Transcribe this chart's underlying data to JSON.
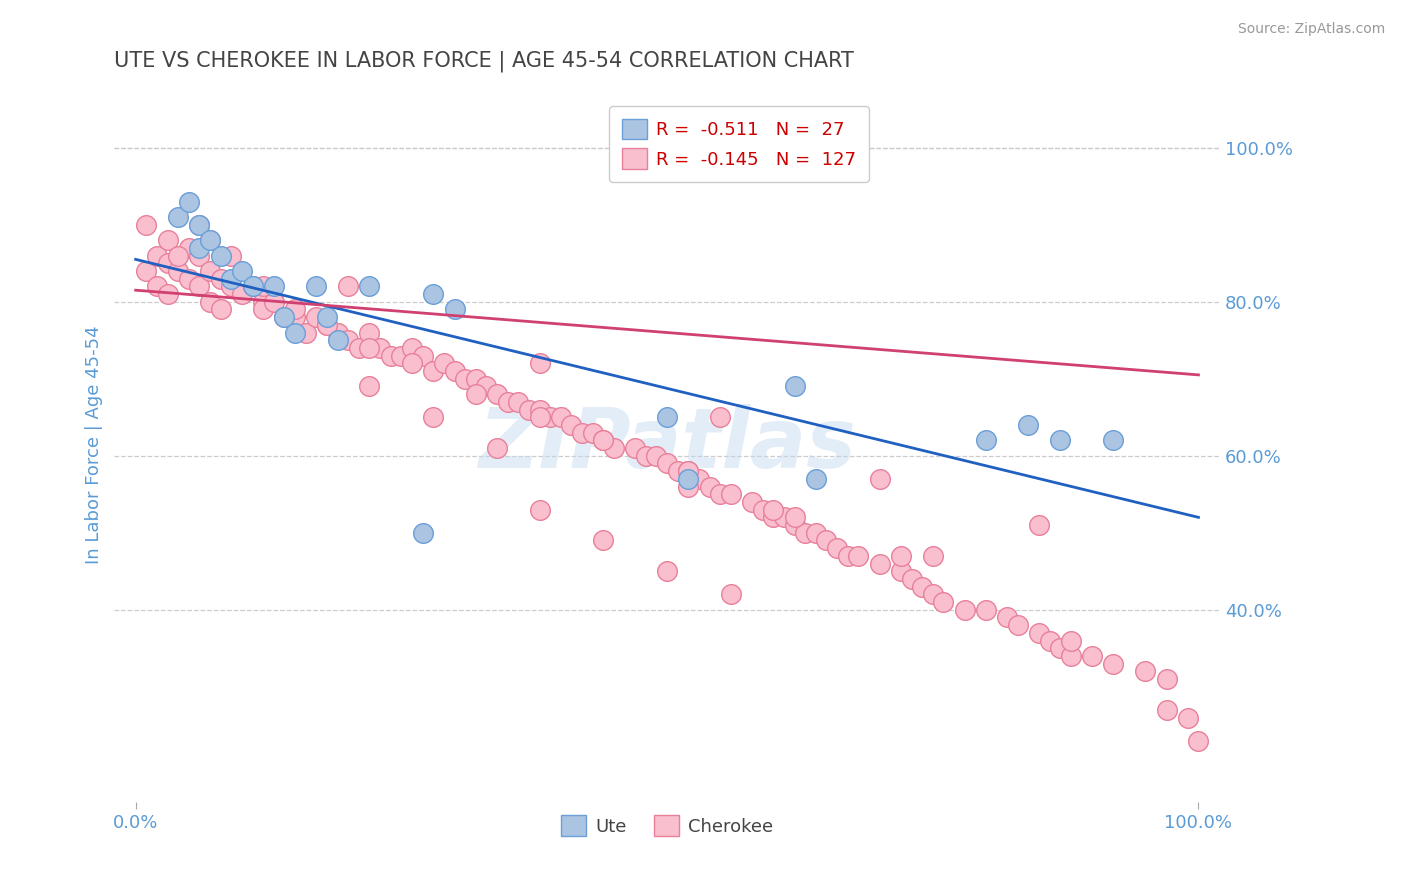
{
  "title": "UTE VS CHEROKEE IN LABOR FORCE | AGE 45-54 CORRELATION CHART",
  "source_text": "Source: ZipAtlas.com",
  "ylabel": "In Labor Force | Age 45-54",
  "xlim": [
    -0.02,
    1.02
  ],
  "ylim": [
    0.15,
    1.08
  ],
  "y_ticks": [
    0.4,
    0.6,
    0.8,
    1.0
  ],
  "y_tick_labels": [
    "40.0%",
    "60.0%",
    "80.0%",
    "100.0%"
  ],
  "ute_color": "#aac4e2",
  "ute_edge_color": "#6a9fd8",
  "cherokee_color": "#f9bfcf",
  "cherokee_edge_color": "#e8809a",
  "ute_line_color": "#2060c0",
  "cherokee_line_color": "#d04070",
  "watermark": "ZIPatlas",
  "legend_r_ute": "-0.511",
  "legend_n_ute": "27",
  "legend_r_cherokee": "-0.145",
  "legend_n_cherokee": "127",
  "ute_line_x0": 0.0,
  "ute_line_y0": 0.855,
  "ute_line_x1": 1.0,
  "ute_line_y1": 0.52,
  "cher_line_x0": 0.0,
  "cher_line_y0": 0.815,
  "cher_line_x1": 1.0,
  "cher_line_y1": 0.705,
  "ute_x": [
    0.04,
    0.05,
    0.06,
    0.06,
    0.07,
    0.08,
    0.09,
    0.1,
    0.11,
    0.13,
    0.14,
    0.15,
    0.17,
    0.18,
    0.19,
    0.22,
    0.27,
    0.28,
    0.3,
    0.5,
    0.52,
    0.62,
    0.64,
    0.8,
    0.84,
    0.87,
    0.92
  ],
  "ute_y": [
    0.91,
    0.93,
    0.87,
    0.9,
    0.88,
    0.86,
    0.83,
    0.84,
    0.82,
    0.82,
    0.78,
    0.76,
    0.82,
    0.78,
    0.75,
    0.82,
    0.5,
    0.81,
    0.79,
    0.65,
    0.57,
    0.69,
    0.57,
    0.62,
    0.64,
    0.62,
    0.62
  ],
  "cherokee_x": [
    0.01,
    0.02,
    0.02,
    0.03,
    0.03,
    0.04,
    0.05,
    0.05,
    0.06,
    0.06,
    0.07,
    0.07,
    0.08,
    0.08,
    0.09,
    0.1,
    0.11,
    0.12,
    0.12,
    0.13,
    0.14,
    0.15,
    0.16,
    0.17,
    0.18,
    0.19,
    0.2,
    0.21,
    0.22,
    0.23,
    0.24,
    0.25,
    0.26,
    0.27,
    0.28,
    0.29,
    0.3,
    0.31,
    0.32,
    0.33,
    0.34,
    0.35,
    0.36,
    0.37,
    0.38,
    0.39,
    0.4,
    0.41,
    0.42,
    0.43,
    0.44,
    0.45,
    0.47,
    0.48,
    0.49,
    0.5,
    0.51,
    0.52,
    0.53,
    0.54,
    0.55,
    0.56,
    0.58,
    0.59,
    0.6,
    0.61,
    0.62,
    0.63,
    0.64,
    0.65,
    0.66,
    0.67,
    0.68,
    0.7,
    0.72,
    0.73,
    0.74,
    0.75,
    0.76,
    0.78,
    0.8,
    0.82,
    0.83,
    0.85,
    0.86,
    0.87,
    0.88,
    0.9,
    0.92,
    0.95,
    0.97,
    0.99,
    1.0,
    0.01,
    0.03,
    0.04,
    0.06,
    0.07,
    0.09,
    0.12,
    0.15,
    0.18,
    0.22,
    0.26,
    0.32,
    0.38,
    0.44,
    0.52,
    0.62,
    0.75,
    0.88,
    0.38,
    0.44,
    0.5,
    0.56,
    0.22,
    0.28,
    0.34,
    0.52,
    0.6,
    0.72,
    0.38,
    0.55,
    0.7,
    0.85,
    0.97,
    0.2
  ],
  "cherokee_y": [
    0.84,
    0.86,
    0.82,
    0.85,
    0.81,
    0.84,
    0.87,
    0.83,
    0.86,
    0.82,
    0.84,
    0.8,
    0.83,
    0.79,
    0.82,
    0.81,
    0.82,
    0.8,
    0.79,
    0.8,
    0.78,
    0.78,
    0.76,
    0.78,
    0.77,
    0.76,
    0.75,
    0.74,
    0.76,
    0.74,
    0.73,
    0.73,
    0.74,
    0.73,
    0.71,
    0.72,
    0.71,
    0.7,
    0.7,
    0.69,
    0.68,
    0.67,
    0.67,
    0.66,
    0.66,
    0.65,
    0.65,
    0.64,
    0.63,
    0.63,
    0.62,
    0.61,
    0.61,
    0.6,
    0.6,
    0.59,
    0.58,
    0.58,
    0.57,
    0.56,
    0.55,
    0.55,
    0.54,
    0.53,
    0.52,
    0.52,
    0.51,
    0.5,
    0.5,
    0.49,
    0.48,
    0.47,
    0.47,
    0.46,
    0.45,
    0.44,
    0.43,
    0.42,
    0.41,
    0.4,
    0.4,
    0.39,
    0.38,
    0.37,
    0.36,
    0.35,
    0.34,
    0.34,
    0.33,
    0.32,
    0.31,
    0.26,
    0.23,
    0.9,
    0.88,
    0.86,
    0.9,
    0.88,
    0.86,
    0.82,
    0.79,
    0.77,
    0.74,
    0.72,
    0.68,
    0.65,
    0.62,
    0.58,
    0.52,
    0.47,
    0.36,
    0.53,
    0.49,
    0.45,
    0.42,
    0.69,
    0.65,
    0.61,
    0.56,
    0.53,
    0.47,
    0.72,
    0.65,
    0.57,
    0.51,
    0.27,
    0.82
  ],
  "background_color": "#ffffff",
  "grid_color": "#cccccc",
  "title_color": "#444444",
  "tick_label_color": "#5b9bd5"
}
